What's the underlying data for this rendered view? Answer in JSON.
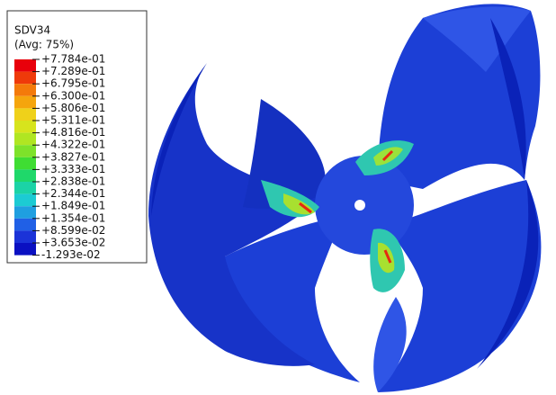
{
  "legend": {
    "title": "SDV34",
    "subtitle": "(Avg: 75%)",
    "labels": [
      "+7.784e-01",
      "+7.289e-01",
      "+6.795e-01",
      "+6.300e-01",
      "+5.806e-01",
      "+5.311e-01",
      "+4.816e-01",
      "+4.322e-01",
      "+3.827e-01",
      "+3.333e-01",
      "+2.838e-01",
      "+2.344e-01",
      "+1.849e-01",
      "+1.354e-01",
      "+8.599e-02",
      "+3.653e-02",
      "-1.293e-02"
    ]
  }
}
